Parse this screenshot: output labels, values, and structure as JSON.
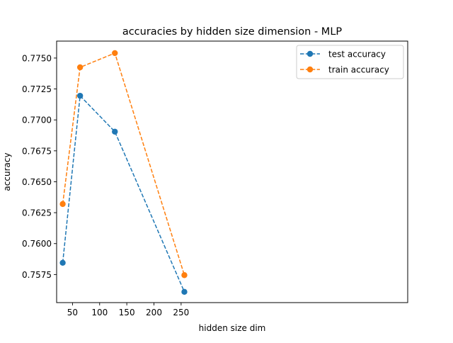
{
  "chart_data": {
    "type": "line",
    "title": "accuracies by hidden size dimension - MLP",
    "xlabel": "hidden size dim",
    "ylabel": "accuracy",
    "x": [
      32,
      64,
      128,
      256
    ],
    "xlim": [
      20.8,
      667.2
    ],
    "ylim": [
      0.75523,
      0.77637
    ],
    "xticks": [
      50,
      100,
      150,
      200,
      250
    ],
    "yticks": [
      0.7575,
      0.76,
      0.7625,
      0.765,
      0.7675,
      0.77,
      0.7725,
      0.775
    ],
    "ytick_labels": [
      "0.7575",
      "0.7600",
      "0.7625",
      "0.7650",
      "0.7675",
      "0.7700",
      "0.7725",
      "0.7750"
    ],
    "series": [
      {
        "name": "test accuracy",
        "color": "#1f77b4",
        "line_style": "dashed",
        "marker": "circle",
        "values": [
          0.75845,
          0.77195,
          0.76905,
          0.7561
        ]
      },
      {
        "name": "train accuracy",
        "color": "#ff7f0e",
        "line_style": "dashed",
        "marker": "circle",
        "values": [
          0.7632,
          0.77425,
          0.7754,
          0.75745
        ]
      }
    ],
    "legend_position": "top-right",
    "grid": false
  }
}
